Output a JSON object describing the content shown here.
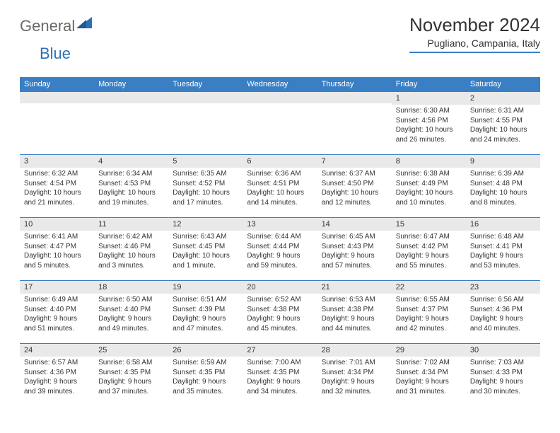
{
  "logo": {
    "general": "General",
    "blue": "Blue"
  },
  "title": "November 2024",
  "location": "Pugliano, Campania, Italy",
  "dayHeaders": [
    "Sunday",
    "Monday",
    "Tuesday",
    "Wednesday",
    "Thursday",
    "Friday",
    "Saturday"
  ],
  "colors": {
    "headerBg": "#3a7fc4",
    "headerText": "#ffffff",
    "dayNumBg": "#e9e9e9",
    "borderTop": "#3a7fc4",
    "text": "#333333",
    "logoGray": "#6a6a6a",
    "logoBlue": "#2f6fb3"
  },
  "fonts": {
    "title_pt": 26,
    "location_pt": 14,
    "header_pt": 11,
    "daynum_pt": 11,
    "body_pt": 10
  },
  "weeks": [
    [
      null,
      null,
      null,
      null,
      null,
      {
        "num": "1",
        "sunrise": "Sunrise: 6:30 AM",
        "sunset": "Sunset: 4:56 PM",
        "daylight": "Daylight: 10 hours and 26 minutes."
      },
      {
        "num": "2",
        "sunrise": "Sunrise: 6:31 AM",
        "sunset": "Sunset: 4:55 PM",
        "daylight": "Daylight: 10 hours and 24 minutes."
      }
    ],
    [
      {
        "num": "3",
        "sunrise": "Sunrise: 6:32 AM",
        "sunset": "Sunset: 4:54 PM",
        "daylight": "Daylight: 10 hours and 21 minutes."
      },
      {
        "num": "4",
        "sunrise": "Sunrise: 6:34 AM",
        "sunset": "Sunset: 4:53 PM",
        "daylight": "Daylight: 10 hours and 19 minutes."
      },
      {
        "num": "5",
        "sunrise": "Sunrise: 6:35 AM",
        "sunset": "Sunset: 4:52 PM",
        "daylight": "Daylight: 10 hours and 17 minutes."
      },
      {
        "num": "6",
        "sunrise": "Sunrise: 6:36 AM",
        "sunset": "Sunset: 4:51 PM",
        "daylight": "Daylight: 10 hours and 14 minutes."
      },
      {
        "num": "7",
        "sunrise": "Sunrise: 6:37 AM",
        "sunset": "Sunset: 4:50 PM",
        "daylight": "Daylight: 10 hours and 12 minutes."
      },
      {
        "num": "8",
        "sunrise": "Sunrise: 6:38 AM",
        "sunset": "Sunset: 4:49 PM",
        "daylight": "Daylight: 10 hours and 10 minutes."
      },
      {
        "num": "9",
        "sunrise": "Sunrise: 6:39 AM",
        "sunset": "Sunset: 4:48 PM",
        "daylight": "Daylight: 10 hours and 8 minutes."
      }
    ],
    [
      {
        "num": "10",
        "sunrise": "Sunrise: 6:41 AM",
        "sunset": "Sunset: 4:47 PM",
        "daylight": "Daylight: 10 hours and 5 minutes."
      },
      {
        "num": "11",
        "sunrise": "Sunrise: 6:42 AM",
        "sunset": "Sunset: 4:46 PM",
        "daylight": "Daylight: 10 hours and 3 minutes."
      },
      {
        "num": "12",
        "sunrise": "Sunrise: 6:43 AM",
        "sunset": "Sunset: 4:45 PM",
        "daylight": "Daylight: 10 hours and 1 minute."
      },
      {
        "num": "13",
        "sunrise": "Sunrise: 6:44 AM",
        "sunset": "Sunset: 4:44 PM",
        "daylight": "Daylight: 9 hours and 59 minutes."
      },
      {
        "num": "14",
        "sunrise": "Sunrise: 6:45 AM",
        "sunset": "Sunset: 4:43 PM",
        "daylight": "Daylight: 9 hours and 57 minutes."
      },
      {
        "num": "15",
        "sunrise": "Sunrise: 6:47 AM",
        "sunset": "Sunset: 4:42 PM",
        "daylight": "Daylight: 9 hours and 55 minutes."
      },
      {
        "num": "16",
        "sunrise": "Sunrise: 6:48 AM",
        "sunset": "Sunset: 4:41 PM",
        "daylight": "Daylight: 9 hours and 53 minutes."
      }
    ],
    [
      {
        "num": "17",
        "sunrise": "Sunrise: 6:49 AM",
        "sunset": "Sunset: 4:40 PM",
        "daylight": "Daylight: 9 hours and 51 minutes."
      },
      {
        "num": "18",
        "sunrise": "Sunrise: 6:50 AM",
        "sunset": "Sunset: 4:40 PM",
        "daylight": "Daylight: 9 hours and 49 minutes."
      },
      {
        "num": "19",
        "sunrise": "Sunrise: 6:51 AM",
        "sunset": "Sunset: 4:39 PM",
        "daylight": "Daylight: 9 hours and 47 minutes."
      },
      {
        "num": "20",
        "sunrise": "Sunrise: 6:52 AM",
        "sunset": "Sunset: 4:38 PM",
        "daylight": "Daylight: 9 hours and 45 minutes."
      },
      {
        "num": "21",
        "sunrise": "Sunrise: 6:53 AM",
        "sunset": "Sunset: 4:38 PM",
        "daylight": "Daylight: 9 hours and 44 minutes."
      },
      {
        "num": "22",
        "sunrise": "Sunrise: 6:55 AM",
        "sunset": "Sunset: 4:37 PM",
        "daylight": "Daylight: 9 hours and 42 minutes."
      },
      {
        "num": "23",
        "sunrise": "Sunrise: 6:56 AM",
        "sunset": "Sunset: 4:36 PM",
        "daylight": "Daylight: 9 hours and 40 minutes."
      }
    ],
    [
      {
        "num": "24",
        "sunrise": "Sunrise: 6:57 AM",
        "sunset": "Sunset: 4:36 PM",
        "daylight": "Daylight: 9 hours and 39 minutes."
      },
      {
        "num": "25",
        "sunrise": "Sunrise: 6:58 AM",
        "sunset": "Sunset: 4:35 PM",
        "daylight": "Daylight: 9 hours and 37 minutes."
      },
      {
        "num": "26",
        "sunrise": "Sunrise: 6:59 AM",
        "sunset": "Sunset: 4:35 PM",
        "daylight": "Daylight: 9 hours and 35 minutes."
      },
      {
        "num": "27",
        "sunrise": "Sunrise: 7:00 AM",
        "sunset": "Sunset: 4:35 PM",
        "daylight": "Daylight: 9 hours and 34 minutes."
      },
      {
        "num": "28",
        "sunrise": "Sunrise: 7:01 AM",
        "sunset": "Sunset: 4:34 PM",
        "daylight": "Daylight: 9 hours and 32 minutes."
      },
      {
        "num": "29",
        "sunrise": "Sunrise: 7:02 AM",
        "sunset": "Sunset: 4:34 PM",
        "daylight": "Daylight: 9 hours and 31 minutes."
      },
      {
        "num": "30",
        "sunrise": "Sunrise: 7:03 AM",
        "sunset": "Sunset: 4:33 PM",
        "daylight": "Daylight: 9 hours and 30 minutes."
      }
    ]
  ]
}
